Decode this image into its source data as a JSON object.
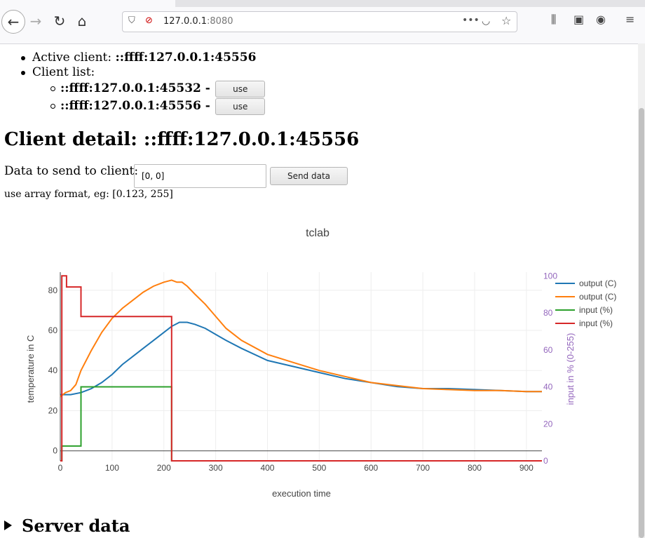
{
  "browser": {
    "url_host": "127.0.0.1",
    "url_port": ":8080",
    "more_icon": "more-icon",
    "toolbar_icons": [
      "library-icon",
      "sidebar-icon",
      "account-icon",
      "menu-icon"
    ]
  },
  "clients": {
    "active_label": "Active client:",
    "active_value": "::ffff:127.0.0.1:45556",
    "list_label": "Client list:",
    "list": [
      {
        "address": "::ffff:127.0.0.1:45532 -",
        "button": "use"
      },
      {
        "address": "::ffff:127.0.0.1:45556 -",
        "button": "use"
      }
    ]
  },
  "detail": {
    "title": "Client detail: ::ffff:127.0.0.1:45556",
    "send_label": "Data to send to client:",
    "send_value": "[0, 0]",
    "send_button": "Send data",
    "hint": "use array format, eg: [0.123, 255]"
  },
  "chart_data": {
    "type": "line",
    "title": "tclab",
    "xlabel": "execution time",
    "ylabel": "temperature in C",
    "y2label": "input in % (0-255)",
    "xlim": [
      0,
      930
    ],
    "ylim": [
      -5,
      89
    ],
    "y2lim": [
      0,
      102
    ],
    "xticks": [
      0,
      100,
      200,
      300,
      400,
      500,
      600,
      700,
      800,
      900
    ],
    "yticks": [
      0,
      20,
      40,
      60,
      80
    ],
    "y2ticks": [
      0,
      20,
      40,
      60,
      80,
      100
    ],
    "grid": true,
    "legend_position": "top-right",
    "colors": {
      "blue": "#1f77b4",
      "orange": "#ff7f0e",
      "green": "#2ca02c",
      "red": "#d62728",
      "y2axis": "#9467bd"
    },
    "series": [
      {
        "name": "output (C)",
        "axis": "y",
        "color": "#1f77b4",
        "x": [
          0,
          20,
          40,
          60,
          80,
          100,
          120,
          140,
          160,
          180,
          200,
          215,
          230,
          245,
          260,
          280,
          300,
          320,
          350,
          400,
          450,
          500,
          550,
          600,
          650,
          700,
          750,
          800,
          850,
          900,
          930
        ],
        "y": [
          28,
          28,
          29,
          31,
          34,
          38,
          43,
          47,
          51,
          55,
          59,
          62,
          64,
          64,
          63,
          61,
          58,
          55,
          51,
          45,
          42,
          39,
          36,
          34,
          32,
          31,
          31,
          30.5,
          30,
          29.5,
          29.5
        ]
      },
      {
        "name": "output (C)",
        "axis": "y",
        "color": "#ff7f0e",
        "x": [
          0,
          10,
          20,
          30,
          40,
          60,
          80,
          100,
          120,
          140,
          160,
          180,
          200,
          215,
          225,
          235,
          245,
          260,
          280,
          300,
          320,
          350,
          400,
          450,
          500,
          550,
          600,
          650,
          700,
          750,
          800,
          850,
          900,
          930
        ],
        "y": [
          27,
          29,
          30,
          33,
          40,
          50,
          59,
          66,
          71,
          75,
          79,
          82,
          84,
          85,
          84,
          84,
          82,
          78,
          73,
          67,
          61,
          55,
          48,
          44,
          40,
          37,
          34,
          32.5,
          31,
          30.5,
          30,
          30,
          29.5,
          29.5
        ]
      },
      {
        "name": "input (%)",
        "axis": "y2",
        "color": "#2ca02c",
        "x": [
          0,
          3,
          3,
          40,
          40,
          215,
          215,
          930
        ],
        "y": [
          0,
          0,
          8,
          8,
          40,
          40,
          0,
          0
        ]
      },
      {
        "name": "input (%)",
        "axis": "y2",
        "color": "#d62728",
        "x": [
          0,
          3,
          3,
          12,
          12,
          40,
          40,
          215,
          215,
          930
        ],
        "y": [
          0,
          0,
          100,
          100,
          94,
          94,
          78,
          78,
          0,
          0
        ]
      }
    ]
  },
  "server": {
    "title": "Server data"
  }
}
